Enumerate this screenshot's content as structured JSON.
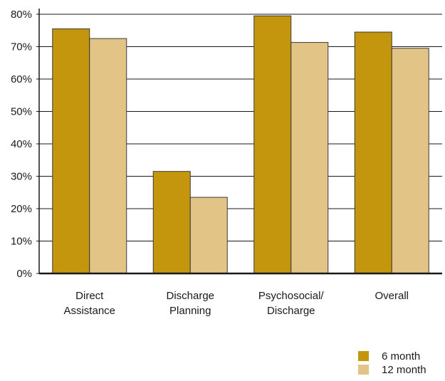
{
  "chart_data": {
    "type": "bar",
    "title": "",
    "xlabel": "",
    "ylabel": "",
    "categories": [
      [
        "Direct",
        "Assistance"
      ],
      [
        "Discharge",
        "Planning"
      ],
      [
        "Psychosocial/",
        "Discharge"
      ],
      [
        "Overall"
      ]
    ],
    "series": [
      {
        "name": "6 month",
        "color": "#C4960E",
        "values": [
          75.5,
          31.5,
          79.5,
          74.5
        ]
      },
      {
        "name": "12 month",
        "color": "#E2C487",
        "values": [
          72.5,
          23.5,
          71.3,
          69.5
        ]
      }
    ],
    "ylim": [
      0,
      80
    ],
    "yticks": [
      0,
      10,
      20,
      30,
      40,
      50,
      60,
      70,
      80
    ],
    "ytick_labels": [
      "0%",
      "10%",
      "20%",
      "30%",
      "40%",
      "50%",
      "60%",
      "70%",
      "80%"
    ],
    "grid": true,
    "legend_position": "bottom-right"
  }
}
